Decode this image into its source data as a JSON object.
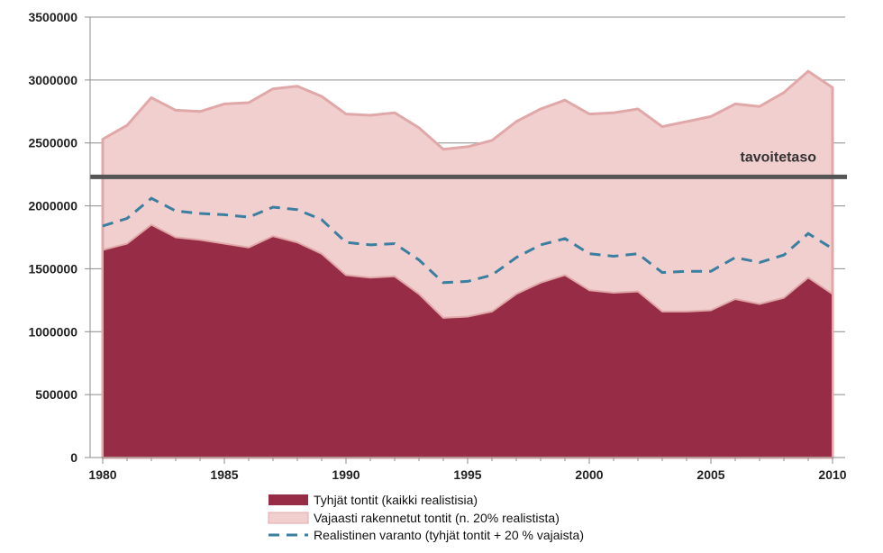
{
  "chart_data": {
    "type": "area",
    "title": "",
    "xlabel": "",
    "ylabel": "",
    "x": [
      1980,
      1981,
      1982,
      1983,
      1984,
      1985,
      1986,
      1987,
      1988,
      1989,
      1990,
      1991,
      1992,
      1993,
      1994,
      1995,
      1996,
      1997,
      1998,
      1999,
      2000,
      2001,
      2002,
      2003,
      2004,
      2005,
      2006,
      2007,
      2008,
      2009,
      2010
    ],
    "xlim": [
      1980,
      2010
    ],
    "ylim": [
      0,
      3500000
    ],
    "x_ticks": [
      1980,
      1985,
      1990,
      1995,
      2000,
      2005,
      2010
    ],
    "x_tick_labels": [
      "1980",
      "1985",
      "1990",
      "1995",
      "2000",
      "2005",
      "2010"
    ],
    "y_ticks": [
      0,
      500000,
      1000000,
      1500000,
      2000000,
      2500000,
      3000000,
      3500000
    ],
    "y_tick_labels": [
      "0",
      "500000",
      "1000000",
      "1500000",
      "2000000",
      "2500000",
      "3000000",
      "3500000"
    ],
    "grid": "horizontal",
    "legend_position": "bottom",
    "series": [
      {
        "name": "Tyhjät tontit (kaikki realistisia)",
        "kind": "area",
        "color": "#962c45",
        "values": [
          1650000,
          1700000,
          1850000,
          1750000,
          1730000,
          1700000,
          1670000,
          1760000,
          1710000,
          1620000,
          1450000,
          1430000,
          1440000,
          1300000,
          1110000,
          1120000,
          1160000,
          1300000,
          1390000,
          1450000,
          1330000,
          1310000,
          1320000,
          1160000,
          1160000,
          1170000,
          1260000,
          1220000,
          1270000,
          1430000,
          1300000
        ]
      },
      {
        "name": "Vajaasti rakennetut tontit (n. 20% realistista)",
        "kind": "area",
        "color": "#f2cfcf",
        "stroke": "#e0a8a8",
        "values": [
          2530000,
          2640000,
          2860000,
          2760000,
          2750000,
          2810000,
          2820000,
          2930000,
          2950000,
          2870000,
          2730000,
          2720000,
          2740000,
          2620000,
          2450000,
          2470000,
          2520000,
          2670000,
          2770000,
          2840000,
          2730000,
          2740000,
          2770000,
          2630000,
          2670000,
          2710000,
          2810000,
          2790000,
          2900000,
          3070000,
          2940000
        ]
      },
      {
        "name": "Realistinen varanto (tyhjät tontit + 20 % vajaista)",
        "kind": "dashed-line",
        "color": "#3a7fa0",
        "values": [
          1840000,
          1900000,
          2060000,
          1960000,
          1940000,
          1930000,
          1910000,
          1990000,
          1970000,
          1890000,
          1710000,
          1690000,
          1700000,
          1570000,
          1390000,
          1400000,
          1450000,
          1590000,
          1690000,
          1740000,
          1620000,
          1600000,
          1620000,
          1470000,
          1480000,
          1480000,
          1590000,
          1550000,
          1610000,
          1780000,
          1660000
        ]
      }
    ],
    "reference_line": {
      "label": "tavoitetaso",
      "value": 2230000,
      "color": "#555555"
    }
  }
}
